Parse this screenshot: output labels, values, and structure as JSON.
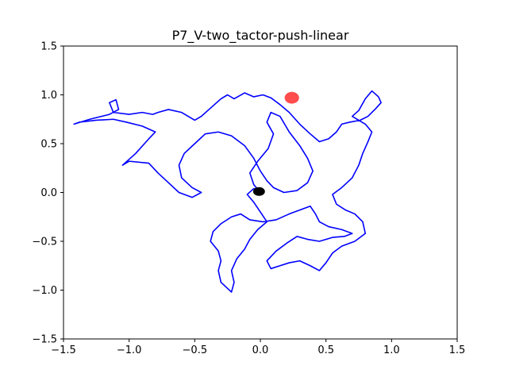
{
  "chart_data": {
    "type": "line",
    "title": "P7_V-two_tactor-push-linear",
    "xlabel": "",
    "ylabel": "",
    "xlim": [
      -1.5,
      1.5
    ],
    "ylim": [
      -1.5,
      1.5
    ],
    "x_ticks": [
      -1.5,
      -1.0,
      -0.5,
      0.0,
      0.5,
      1.0,
      1.5
    ],
    "y_ticks": [
      -1.5,
      -1.0,
      -0.5,
      0.0,
      0.5,
      1.0,
      1.5
    ],
    "x_tick_labels": [
      "−1.5",
      "−1.0",
      "−0.5",
      "0.0",
      "0.5",
      "1.0",
      "1.5"
    ],
    "y_tick_labels": [
      "−1.5",
      "−1.0",
      "−0.5",
      "0.0",
      "0.5",
      "1.0",
      "1.5"
    ],
    "grid": false,
    "colors": {
      "trajectory": "#0000ff",
      "target": "#ff0000",
      "start": "#000000"
    },
    "series": [
      {
        "name": "trajectory",
        "color": "#0000ff",
        "points": [
          [
            0.0,
            0.0
          ],
          [
            -0.05,
            0.08
          ],
          [
            -0.08,
            0.2
          ],
          [
            -0.02,
            0.32
          ],
          [
            0.06,
            0.45
          ],
          [
            0.1,
            0.6
          ],
          [
            0.05,
            0.72
          ],
          [
            0.08,
            0.82
          ],
          [
            0.15,
            0.78
          ],
          [
            0.22,
            0.62
          ],
          [
            0.3,
            0.48
          ],
          [
            0.36,
            0.35
          ],
          [
            0.4,
            0.22
          ],
          [
            0.36,
            0.1
          ],
          [
            0.28,
            0.02
          ],
          [
            0.18,
            0.0
          ],
          [
            0.1,
            0.05
          ],
          [
            0.05,
            0.12
          ],
          [
            0.0,
            0.22
          ],
          [
            -0.05,
            0.35
          ],
          [
            -0.12,
            0.48
          ],
          [
            -0.22,
            0.58
          ],
          [
            -0.32,
            0.62
          ],
          [
            -0.42,
            0.6
          ],
          [
            -0.5,
            0.5
          ],
          [
            -0.58,
            0.4
          ],
          [
            -0.62,
            0.28
          ],
          [
            -0.6,
            0.15
          ],
          [
            -0.52,
            0.05
          ],
          [
            -0.45,
            0.0
          ],
          [
            -0.52,
            -0.05
          ],
          [
            -0.62,
            0.0
          ],
          [
            -0.7,
            0.1
          ],
          [
            -0.78,
            0.2
          ],
          [
            -0.85,
            0.3
          ],
          [
            -1.0,
            0.32
          ],
          [
            -1.05,
            0.28
          ],
          [
            -0.95,
            0.4
          ],
          [
            -0.85,
            0.55
          ],
          [
            -0.8,
            0.62
          ],
          [
            -0.9,
            0.68
          ],
          [
            -1.02,
            0.72
          ],
          [
            -1.12,
            0.75
          ],
          [
            -1.25,
            0.74
          ],
          [
            -1.38,
            0.72
          ],
          [
            -1.42,
            0.7
          ],
          [
            -1.3,
            0.75
          ],
          [
            -1.15,
            0.8
          ],
          [
            -1.08,
            0.85
          ],
          [
            -1.1,
            0.95
          ],
          [
            -1.15,
            0.92
          ],
          [
            -1.12,
            0.82
          ],
          [
            -1.0,
            0.8
          ],
          [
            -0.9,
            0.82
          ],
          [
            -0.82,
            0.8
          ],
          [
            -0.78,
            0.82
          ],
          [
            -0.7,
            0.85
          ],
          [
            -0.6,
            0.82
          ],
          [
            -0.55,
            0.78
          ],
          [
            -0.5,
            0.74
          ],
          [
            -0.45,
            0.78
          ],
          [
            -0.4,
            0.84
          ],
          [
            -0.35,
            0.9
          ],
          [
            -0.3,
            0.96
          ],
          [
            -0.25,
            1.0
          ],
          [
            -0.2,
            0.96
          ],
          [
            -0.12,
            1.02
          ],
          [
            -0.05,
            0.98
          ],
          [
            0.02,
            1.0
          ],
          [
            0.08,
            0.97
          ],
          [
            0.15,
            0.9
          ],
          [
            0.22,
            0.82
          ],
          [
            0.3,
            0.7
          ],
          [
            0.38,
            0.6
          ],
          [
            0.45,
            0.52
          ],
          [
            0.52,
            0.55
          ],
          [
            0.58,
            0.62
          ],
          [
            0.62,
            0.7
          ],
          [
            0.68,
            0.72
          ],
          [
            0.76,
            0.74
          ],
          [
            0.82,
            0.78
          ],
          [
            0.88,
            0.86
          ],
          [
            0.92,
            0.92
          ],
          [
            0.9,
            0.98
          ],
          [
            0.85,
            1.04
          ],
          [
            0.8,
            0.96
          ],
          [
            0.75,
            0.84
          ],
          [
            0.7,
            0.78
          ],
          [
            0.8,
            0.7
          ],
          [
            0.85,
            0.62
          ],
          [
            0.82,
            0.52
          ],
          [
            0.78,
            0.4
          ],
          [
            0.75,
            0.28
          ],
          [
            0.7,
            0.15
          ],
          [
            0.62,
            0.05
          ],
          [
            0.55,
            -0.02
          ],
          [
            0.58,
            -0.12
          ],
          [
            0.65,
            -0.18
          ],
          [
            0.72,
            -0.22
          ],
          [
            0.78,
            -0.3
          ],
          [
            0.8,
            -0.42
          ],
          [
            0.72,
            -0.5
          ],
          [
            0.62,
            -0.55
          ],
          [
            0.55,
            -0.62
          ],
          [
            0.5,
            -0.72
          ],
          [
            0.45,
            -0.8
          ],
          [
            0.38,
            -0.75
          ],
          [
            0.3,
            -0.7
          ],
          [
            0.22,
            -0.72
          ],
          [
            0.15,
            -0.75
          ],
          [
            0.08,
            -0.78
          ],
          [
            0.05,
            -0.7
          ],
          [
            0.12,
            -0.6
          ],
          [
            0.2,
            -0.52
          ],
          [
            0.28,
            -0.45
          ],
          [
            0.36,
            -0.48
          ],
          [
            0.45,
            -0.5
          ],
          [
            0.55,
            -0.46
          ],
          [
            0.64,
            -0.45
          ],
          [
            0.7,
            -0.42
          ],
          [
            0.62,
            -0.38
          ],
          [
            0.52,
            -0.35
          ],
          [
            0.45,
            -0.3
          ],
          [
            0.42,
            -0.22
          ],
          [
            0.38,
            -0.14
          ],
          [
            0.3,
            -0.18
          ],
          [
            0.22,
            -0.22
          ],
          [
            0.12,
            -0.28
          ],
          [
            0.02,
            -0.3
          ],
          [
            -0.08,
            -0.28
          ],
          [
            -0.15,
            -0.22
          ],
          [
            -0.22,
            -0.25
          ],
          [
            -0.3,
            -0.32
          ],
          [
            -0.36,
            -0.4
          ],
          [
            -0.38,
            -0.5
          ],
          [
            -0.32,
            -0.6
          ],
          [
            -0.3,
            -0.7
          ],
          [
            -0.32,
            -0.8
          ],
          [
            -0.3,
            -0.92
          ],
          [
            -0.22,
            -1.02
          ],
          [
            -0.2,
            -0.92
          ],
          [
            -0.22,
            -0.8
          ],
          [
            -0.18,
            -0.68
          ],
          [
            -0.12,
            -0.58
          ],
          [
            -0.08,
            -0.48
          ],
          [
            -0.02,
            -0.38
          ],
          [
            0.05,
            -0.3
          ],
          [
            0.0,
            -0.2
          ],
          [
            -0.05,
            -0.1
          ],
          [
            -0.1,
            -0.02
          ],
          [
            -0.05,
            0.04
          ],
          [
            0.02,
            0.02
          ]
        ]
      }
    ],
    "markers": [
      {
        "name": "target",
        "x": 0.24,
        "y": 0.97,
        "rx": 0.055,
        "ry": 0.06,
        "color": "#ff0000",
        "opacity": 0.7
      },
      {
        "name": "start",
        "x": -0.01,
        "y": 0.01,
        "rx": 0.045,
        "ry": 0.045,
        "color": "#000000",
        "opacity": 1.0
      }
    ]
  }
}
